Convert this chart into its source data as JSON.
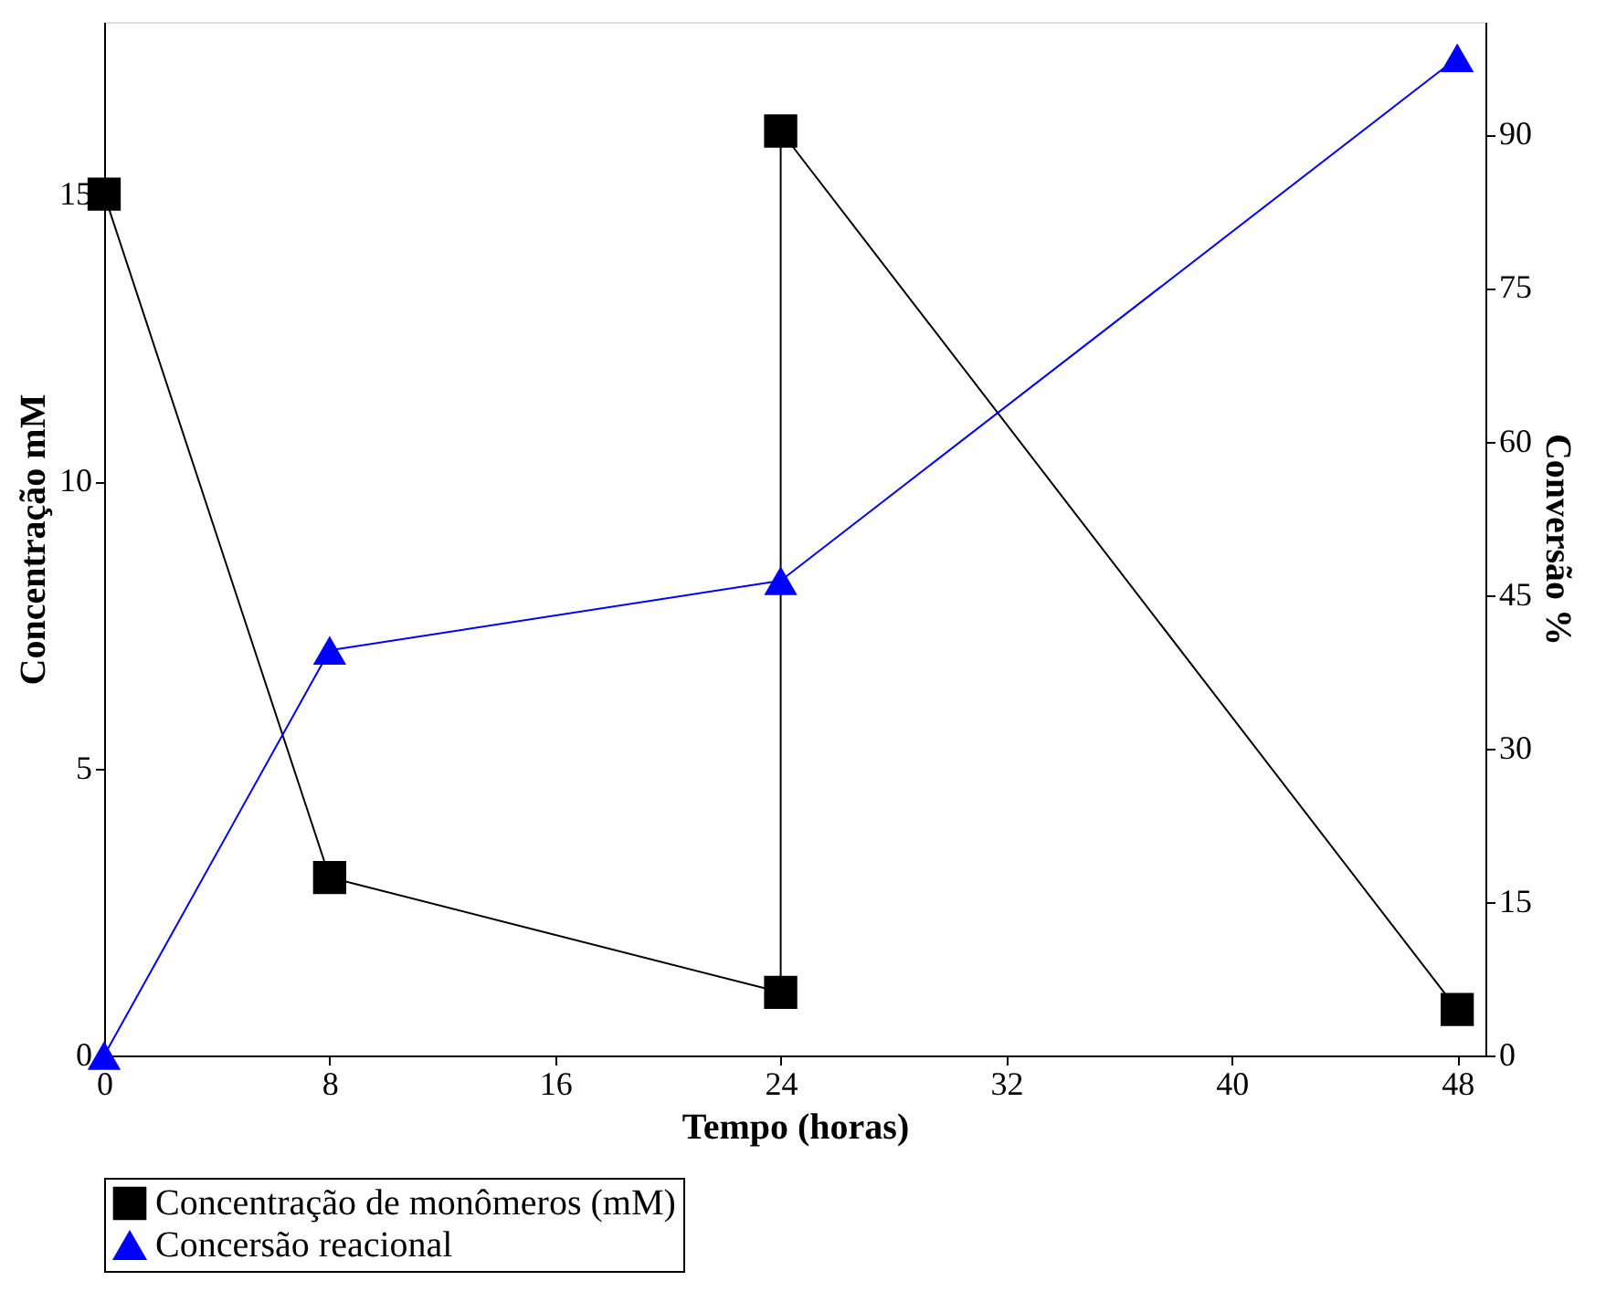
{
  "chart_data": {
    "type": "line",
    "xlabel": "Tempo (horas)",
    "ylabel": "Concentração mM",
    "y2label": "Conversão %",
    "xlim": [
      0,
      49
    ],
    "xticks": [
      0,
      8,
      16,
      24,
      32,
      40,
      48
    ],
    "ylim": [
      0,
      18
    ],
    "yticks": [
      0,
      5,
      10,
      15
    ],
    "y2lim": [
      0,
      101
    ],
    "y2ticks": [
      0,
      15,
      30,
      45,
      60,
      75,
      90
    ],
    "grid": false,
    "legend": "bottom",
    "line_style": "solid",
    "series": [
      {
        "name": "Concentração de monômeros (mM)",
        "color": "#000000",
        "marker": "square",
        "x": [
          0,
          8,
          24,
          24,
          48
        ],
        "values": [
          15,
          3.1,
          1.1,
          16.1,
          0.8
        ]
      },
      {
        "name": "Concersão reacional",
        "color": "#0000ff",
        "marker": "triangle",
        "axis": "y2",
        "x": [
          0,
          8,
          24,
          48
        ],
        "values": [
          0,
          39.6,
          46.4,
          97.5
        ]
      }
    ]
  }
}
